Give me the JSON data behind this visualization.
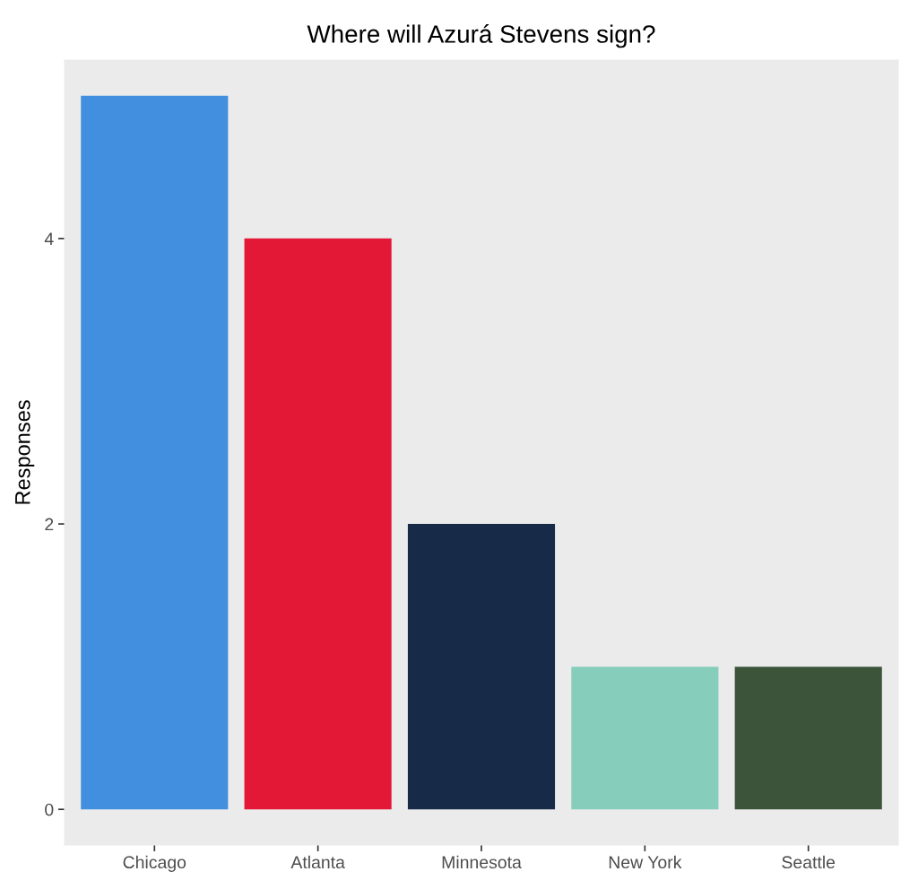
{
  "chart_data": {
    "type": "bar",
    "title": "Where will Azurá Stevens sign?",
    "ylabel": "Responses",
    "categories": [
      "Chicago",
      "Atlanta",
      "Minnesota",
      "New York",
      "Seattle"
    ],
    "values": [
      5,
      4,
      2,
      1,
      1
    ],
    "colors": [
      "#418fde",
      "#e31837",
      "#172b49",
      "#86cebb",
      "#3c5439"
    ],
    "ylim": [
      -0.25,
      5.25
    ],
    "yticks": [
      0,
      2,
      4
    ],
    "grid": false
  }
}
